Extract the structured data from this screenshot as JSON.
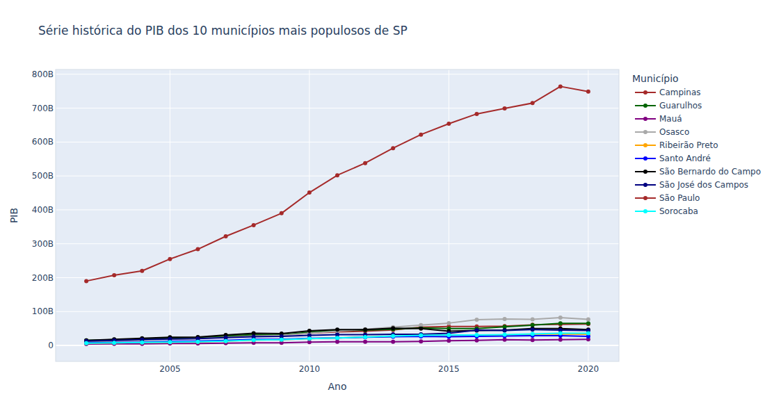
{
  "chart_data": {
    "type": "line",
    "title": "Série histórica do PIB dos 10 municípios mais populosos de SP",
    "x_label": "Ano",
    "y_label": "PIB",
    "legend_title": "Município",
    "legend": "right",
    "grid": true,
    "marker": "circle",
    "line_style": "solid",
    "x": [
      2002,
      2003,
      2004,
      2005,
      2006,
      2007,
      2008,
      2009,
      2010,
      2011,
      2012,
      2013,
      2014,
      2015,
      2016,
      2017,
      2018,
      2019,
      2020
    ],
    "xlim": [
      2000.9,
      2021.1
    ],
    "xticks": [
      2005,
      2010,
      2015,
      2020
    ],
    "ylim": [
      -47,
      814
    ],
    "yticks": [
      0,
      {
        "value": 100,
        "label": "100B"
      },
      {
        "value": 200,
        "label": "200B"
      },
      {
        "value": 300,
        "label": "300B"
      },
      {
        "value": 400,
        "label": "400B"
      },
      {
        "value": 500,
        "label": "500B"
      },
      {
        "value": 600,
        "label": "600B"
      },
      {
        "value": 700,
        "label": "700B"
      },
      {
        "value": 800,
        "label": "800B"
      }
    ],
    "series": [
      {
        "name": "Campinas",
        "color": "#a52a2a",
        "values": [
          14,
          16,
          18,
          20,
          22,
          26,
          30,
          31,
          36,
          40,
          42,
          46,
          54,
          56,
          56,
          57,
          61,
          62,
          63
        ]
      },
      {
        "name": "Guarulhos",
        "color": "#006400",
        "values": [
          15,
          17,
          19,
          22,
          23,
          28,
          32,
          31,
          39,
          44,
          45,
          48,
          52,
          50,
          50,
          55,
          60,
          65,
          65
        ]
      },
      {
        "name": "Mauá",
        "color": "#800080",
        "values": [
          4,
          5,
          5,
          6,
          6,
          7,
          8,
          8,
          10,
          11,
          11,
          11,
          12,
          14,
          15,
          17,
          16,
          17,
          18
        ]
      },
      {
        "name": "Osasco",
        "color": "#a9a9a9",
        "values": [
          10,
          13,
          16,
          18,
          20,
          24,
          28,
          30,
          36,
          42,
          48,
          54,
          60,
          66,
          76,
          78,
          77,
          82,
          77
        ]
      },
      {
        "name": "Ribeirão Preto",
        "color": "#ffa500",
        "values": [
          7,
          8,
          9,
          10,
          11,
          13,
          16,
          17,
          20,
          22,
          25,
          27,
          29,
          30,
          30,
          31,
          33,
          34,
          33
        ]
      },
      {
        "name": "Santo André",
        "color": "#0000ff",
        "values": [
          8,
          9,
          10,
          12,
          13,
          15,
          18,
          18,
          21,
          22,
          24,
          26,
          27,
          26,
          27,
          28,
          29,
          29,
          27
        ]
      },
      {
        "name": "São Bernardo do Campo",
        "color": "#000000",
        "values": [
          15,
          18,
          21,
          24,
          25,
          31,
          36,
          35,
          43,
          47,
          47,
          51,
          50,
          42,
          44,
          45,
          50,
          50,
          47
        ]
      },
      {
        "name": "São José dos Campos",
        "color": "#000080",
        "values": [
          13,
          15,
          17,
          19,
          20,
          23,
          26,
          27,
          30,
          32,
          32,
          33,
          33,
          36,
          45,
          44,
          47,
          45,
          44
        ]
      },
      {
        "name": "São Paulo",
        "color": "#a52a2a",
        "values": [
          190,
          207,
          220,
          255,
          284,
          322,
          355,
          390,
          451,
          502,
          538,
          582,
          622,
          654,
          683,
          699,
          715,
          764,
          749
        ]
      },
      {
        "name": "Sorocaba",
        "color": "#00ffff",
        "values": [
          7,
          8,
          9,
          10,
          11,
          13,
          16,
          17,
          20,
          22,
          25,
          28,
          30,
          31,
          31,
          32,
          34,
          36,
          36
        ]
      }
    ]
  }
}
